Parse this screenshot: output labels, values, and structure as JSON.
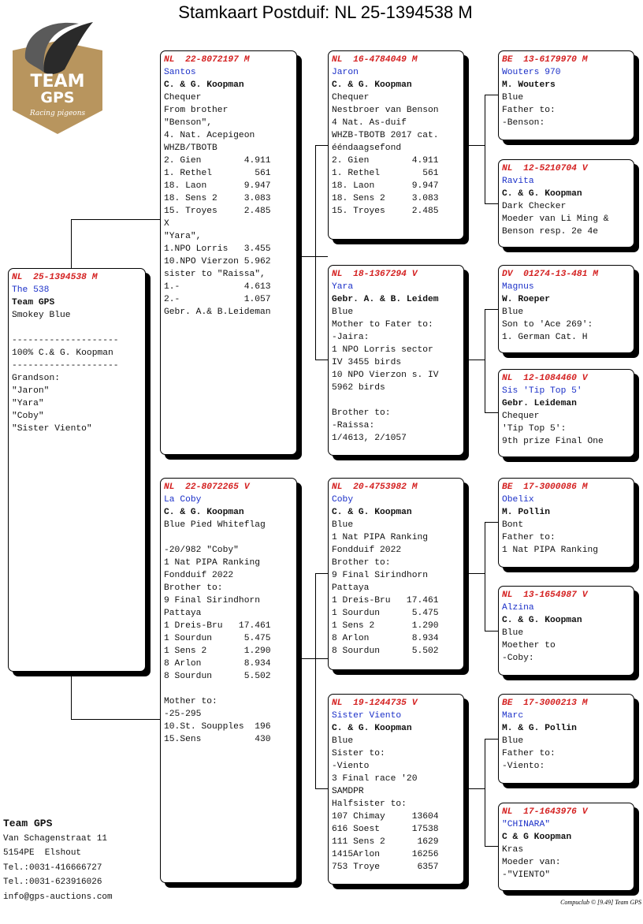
{
  "title": "Stamkaart Postduif: NL  25-1394538 M",
  "logo": {
    "text_top": "TEAM",
    "text_bottom": "GPS",
    "tagline": "Racing pigeons",
    "color": "#b8955e"
  },
  "colors": {
    "ring": "#d42020",
    "name": "#1a2fc8"
  },
  "cards": [
    {
      "ring": "NL  25-1394538 M",
      "name": "The 538",
      "breeder": "Team GPS",
      "lines": [
        "Smokey Blue",
        "",
        "--------------------",
        "100% C.& G. Koopman",
        "--------------------",
        "Grandson:",
        "\"Jaron\"",
        "\"Yara\"",
        "\"Coby\"",
        "\"Sister Viento\""
      ]
    },
    {
      "ring": "NL  22-8072197 M",
      "name": "Santos",
      "breeder": "C. & G. Koopman",
      "lines": [
        "Chequer",
        "From brother",
        "\"Benson\",",
        "4. Nat. Acepigeon",
        "WHZB/TBOTB",
        "2. Gien        4.911",
        "1. Rethel        561",
        "18. Laon       9.947",
        "18. Sens 2     3.083",
        "15. Troyes     2.485",
        "X",
        "\"Yara\",",
        "1.NPO Lorris   3.455",
        "10.NPO Vierzon 5.962",
        "sister to \"Raissa\",",
        "1.-            4.613",
        "2.-            1.057",
        "Gebr. A.& B.Leideman"
      ]
    },
    {
      "ring": "NL  22-8072265 V",
      "name": "La Coby",
      "breeder": "C. & G. Koopman",
      "lines": [
        "Blue Pied Whiteflag",
        "",
        "-20/982 \"Coby\"",
        "1 Nat PIPA Ranking",
        "Fondduif 2022",
        "Brother to:",
        "9 Final Sirindhorn",
        "Pattaya",
        "1 Dreis-Bru   17.461",
        "1 Sourdun      5.475",
        "1 Sens 2       1.290",
        "8 Arlon        8.934",
        "8 Sourdun      5.502",
        "",
        "Mother to:",
        "-25-295",
        "10.St. Soupples  196",
        "15.Sens          430"
      ]
    },
    {
      "ring": "NL  16-4784049 M",
      "name": "Jaron",
      "breeder": "C. & G. Koopman",
      "lines": [
        "Chequer",
        "Nestbroer van Benson",
        "4 Nat. As-duif",
        "WHZB-TBOTB 2017 cat.",
        "ééndaagsefond",
        "2. Gien        4.911",
        "1. Rethel        561",
        "18. Laon       9.947",
        "18. Sens 2     3.083",
        "15. Troyes     2.485"
      ]
    },
    {
      "ring": "NL  18-1367294 V",
      "name": "Yara",
      "breeder": "Gebr. A. & B. Leidem",
      "lines": [
        "Blue",
        "Mother to Fater to:",
        "-Jaira:",
        "1 NPO Lorris sector",
        "IV 3455 birds",
        "10 NPO Vierzon s. IV",
        "5962 birds",
        "",
        "Brother to:",
        "-Raissa:",
        "1/4613, 2/1057"
      ]
    },
    {
      "ring": "NL  20-4753982 M",
      "name": "Coby",
      "breeder": "C. & G. Koopman",
      "lines": [
        "Blue",
        "1 Nat PIPA Ranking",
        "Fondduif 2022",
        "Brother to:",
        "9 Final Sirindhorn",
        "Pattaya",
        "1 Dreis-Bru   17.461",
        "1 Sourdun      5.475",
        "1 Sens 2       1.290",
        "8 Arlon        8.934",
        "8 Sourdun      5.502"
      ]
    },
    {
      "ring": "NL  19-1244735 V",
      "name": "Sister Viento",
      "breeder": "C. & G. Koopman",
      "lines": [
        "Blue",
        "Sister to:",
        "-Viento",
        "3 Final race '20",
        "SAMDPR",
        "Halfsister to:",
        "107 Chimay     13604",
        "616 Soest      17538",
        "111 Sens 2      1629",
        "1415Arlon      16256",
        "753 Troye       6357"
      ]
    },
    {
      "ring": "BE  13-6179970 M",
      "name": "Wouters 970",
      "breeder": "M. Wouters",
      "lines": [
        "Blue",
        "Father to:",
        "-Benson:"
      ]
    },
    {
      "ring": "NL  12-5210704 V",
      "name": "Ravita",
      "breeder": "C. & G. Koopman",
      "lines": [
        "Dark Checker",
        "Moeder van Li Ming &",
        "Benson resp. 2e 4e"
      ]
    },
    {
      "ring": "DV  01274-13-481 M",
      "name": "Magnus",
      "breeder": "W. Roeper",
      "lines": [
        "Blue",
        "Son to 'Ace 269':",
        "1. German Cat. H"
      ]
    },
    {
      "ring": "NL  12-1084460 V",
      "name": "Sis 'Tip Top 5'",
      "breeder": "Gebr. Leideman",
      "lines": [
        "Chequer",
        "'Tip Top 5':",
        "9th prize Final One"
      ]
    },
    {
      "ring": "BE  17-3000086 M",
      "name": "Obelix",
      "breeder": "M. Pollin",
      "lines": [
        "Bont",
        "Father to:",
        "1 Nat PIPA Ranking"
      ]
    },
    {
      "ring": "NL  13-1654987 V",
      "name": "Alzina",
      "breeder": "C. & G. Koopman",
      "lines": [
        "Blue",
        "Moether to",
        "-Coby:"
      ]
    },
    {
      "ring": "BE  17-3000213 M",
      "name": "Marc",
      "breeder": "M. & G. Pollin",
      "lines": [
        "Blue",
        "Father to:",
        "-Viento:"
      ]
    },
    {
      "ring": "NL  17-1643976 V",
      "name": "\"CHINARA\"",
      "breeder": "C & G Koopman",
      "lines": [
        "Kras",
        "Moeder van:",
        "-\"VIENTO\""
      ]
    }
  ],
  "footer": {
    "name": "Team GPS",
    "lines": [
      "Van Schagenstraat 11",
      "5154PE  Elshout",
      "Tel.:0031-416666727",
      "Tel.:0031-623916026",
      "info@gps-auctions.com"
    ]
  },
  "credit": "Compuclub © [9.49]  Team GPS"
}
